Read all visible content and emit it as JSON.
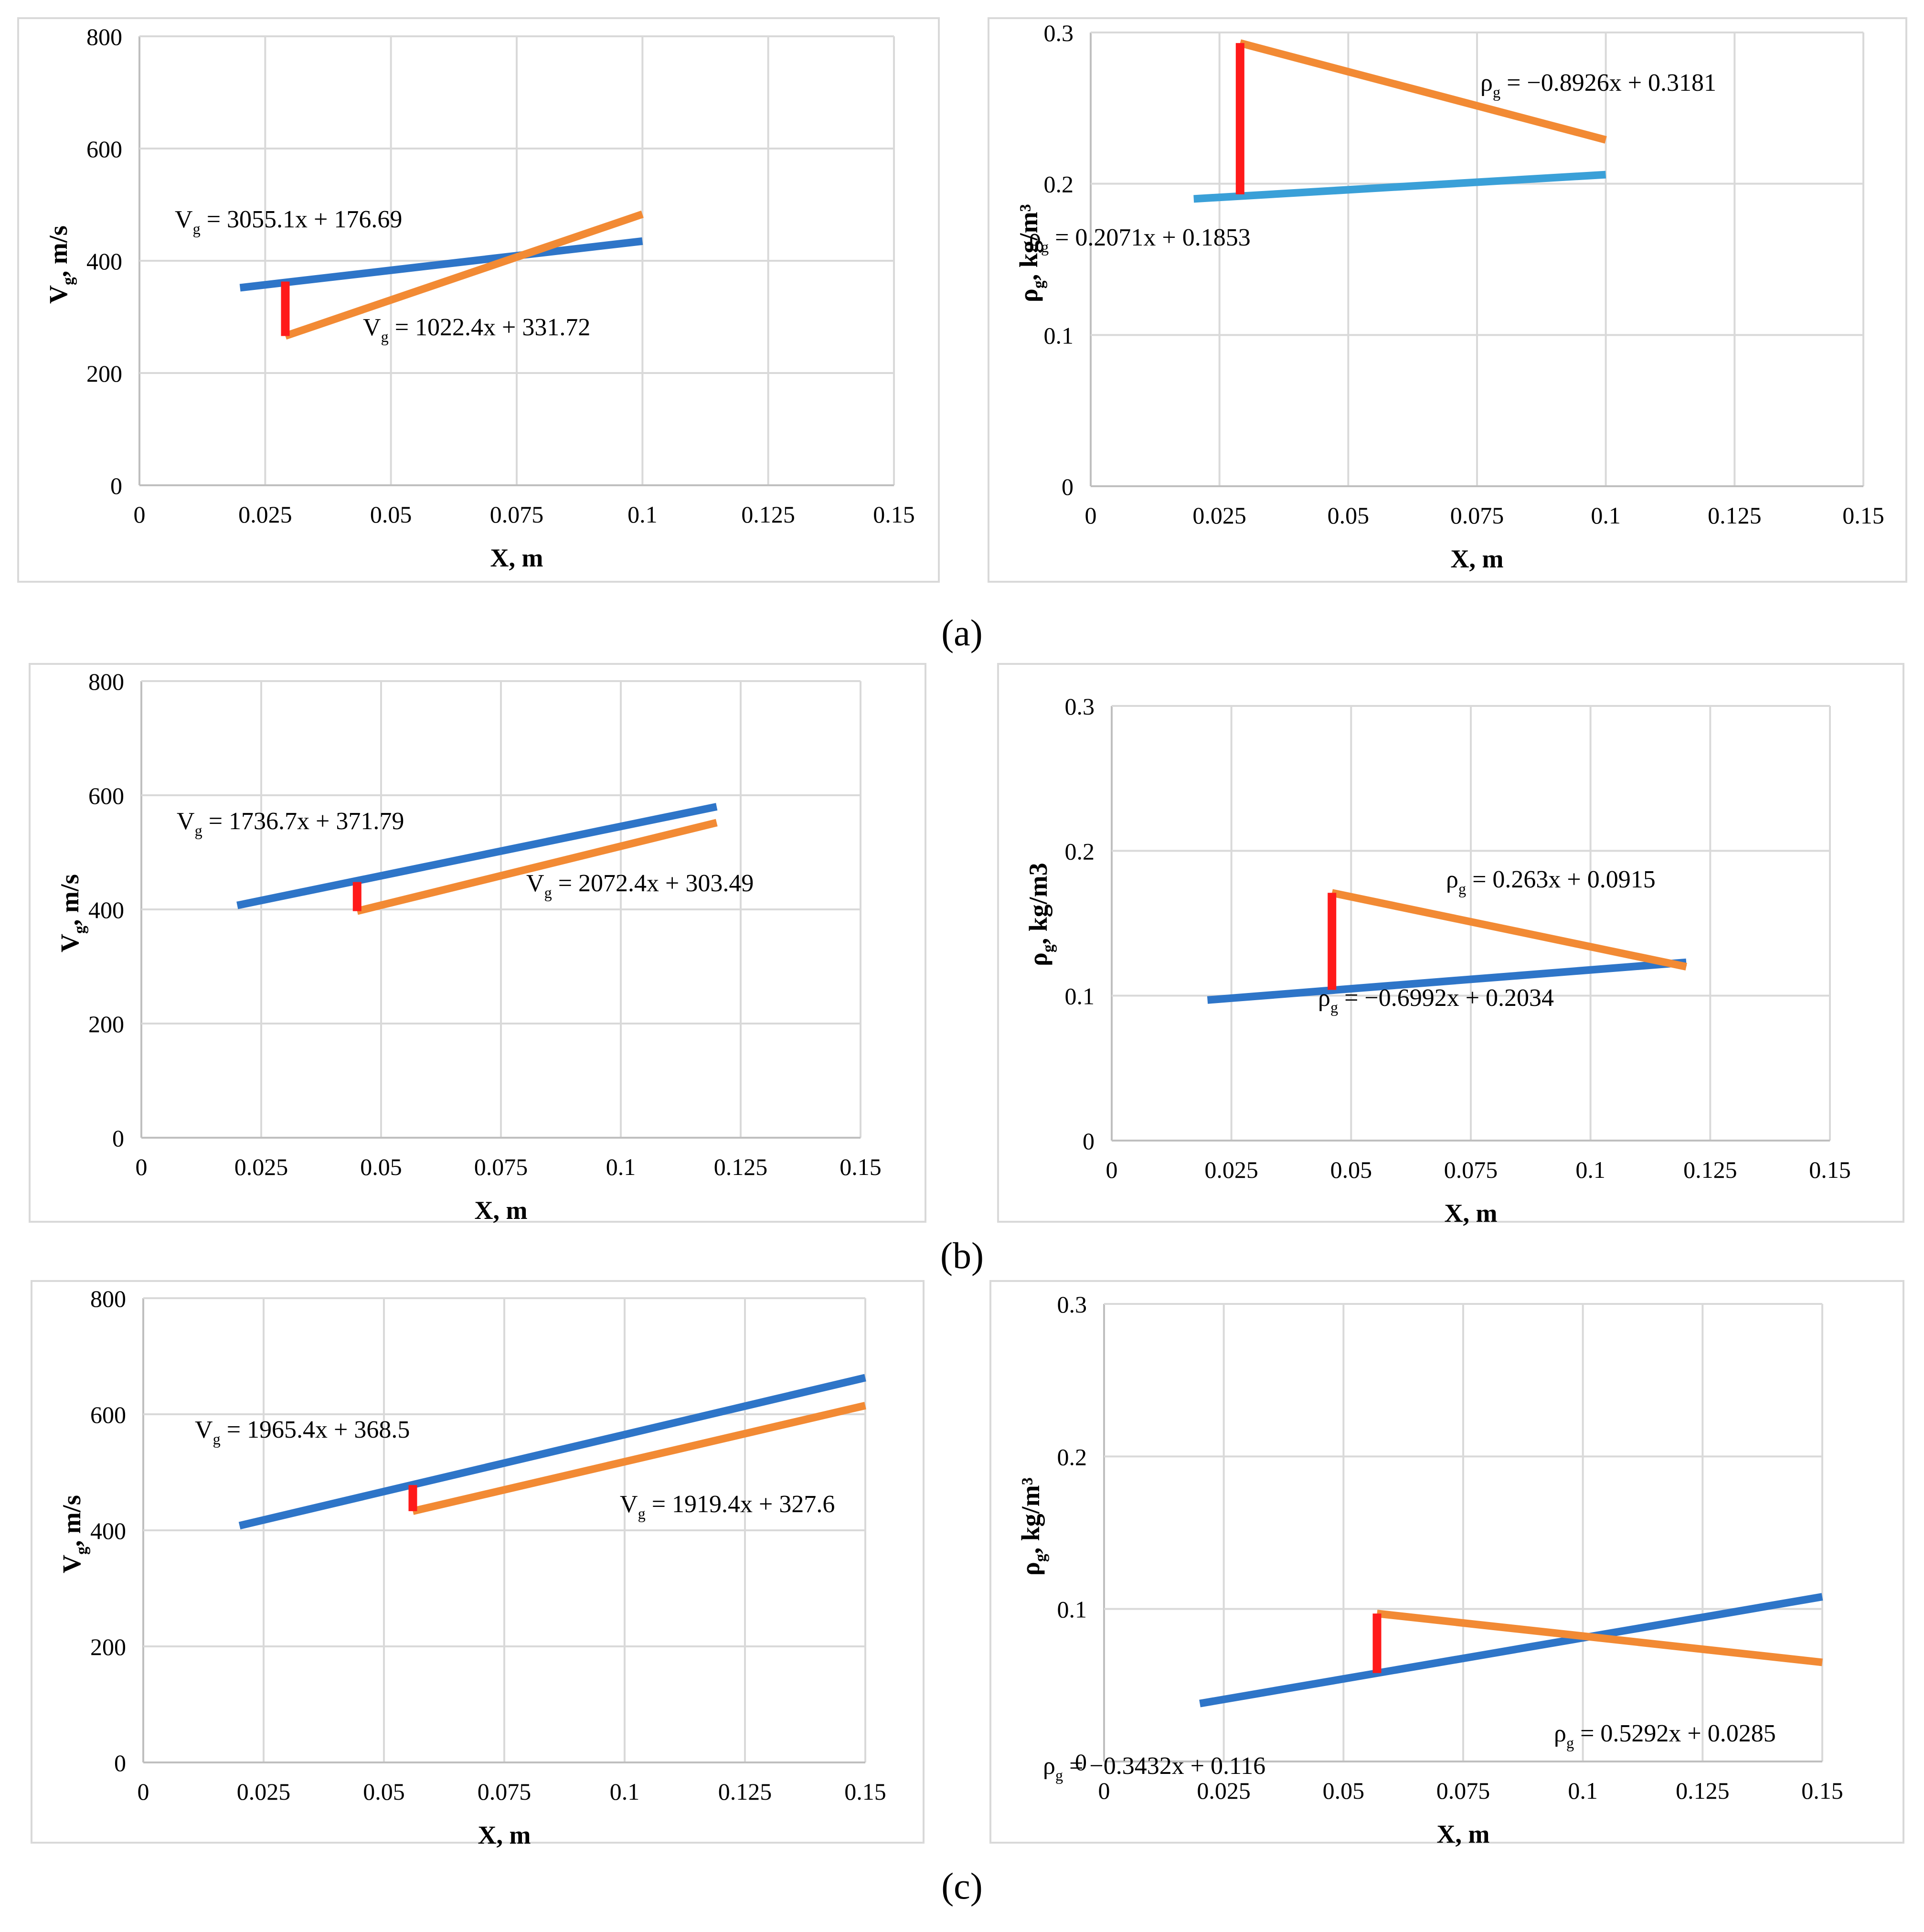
{
  "captions": [
    "(a)",
    "(b)",
    "(c)"
  ],
  "colors": {
    "blue": "#2e75c8",
    "lightblue": "#3aa0d8",
    "orange": "#f28a34",
    "red": "#ff1a1a",
    "grid": "#d9d9d9"
  },
  "chart_data": [
    {
      "id": "a-velocity",
      "type": "line",
      "xlabel": "X, m",
      "ylabel_main": "V",
      "ylabel_sub": "g",
      "ylabel_rest": ", m/s",
      "xlim": [
        0,
        0.15
      ],
      "ylim": [
        0,
        800
      ],
      "xticks": [
        "0",
        "0.025",
        "0.05",
        "0.075",
        "0.1",
        "0.125",
        "0.15"
      ],
      "yticks": [
        "0",
        "200",
        "400",
        "600",
        "800"
      ],
      "series": [
        {
          "name": "blue",
          "color": "#2e75c8",
          "x": [
            0.02,
            0.1
          ],
          "y": [
            352,
            435
          ]
        },
        {
          "name": "orange",
          "color": "#f28a34",
          "x": [
            0.029,
            0.1
          ],
          "y": [
            266,
            483
          ]
        },
        {
          "name": "red",
          "color": "#ff1a1a",
          "x": [
            0.029,
            0.029
          ],
          "y": [
            363,
            266
          ]
        }
      ],
      "annotations": [
        {
          "main": "V",
          "sub": "g",
          "rest": " = 3055.1x + 176.69"
        },
        {
          "main": "V",
          "sub": "g",
          "rest": " = 1022.4x + 331.72"
        }
      ]
    },
    {
      "id": "a-density",
      "type": "line",
      "xlabel": "X, m",
      "ylabel_main": "ρ",
      "ylabel_sub": "g",
      "ylabel_rest": ", kg/m³",
      "xlim": [
        0,
        0.15
      ],
      "ylim": [
        0,
        0.3
      ],
      "xticks": [
        "0",
        "0.025",
        "0.05",
        "0.075",
        "0.1",
        "0.125",
        "0.15"
      ],
      "yticks": [
        "0",
        "0.1",
        "0.2",
        "0.3"
      ],
      "series": [
        {
          "name": "blue",
          "color": "#3aa0d8",
          "x": [
            0.02,
            0.1
          ],
          "y": [
            0.19,
            0.206
          ]
        },
        {
          "name": "orange",
          "color": "#f28a34",
          "x": [
            0.029,
            0.1
          ],
          "y": [
            0.293,
            0.229
          ]
        },
        {
          "name": "red",
          "color": "#ff1a1a",
          "x": [
            0.029,
            0.029
          ],
          "y": [
            0.293,
            0.193
          ]
        }
      ],
      "annotations": [
        {
          "main": "ρ",
          "sub": "g",
          "rest": " = −0.8926x + 0.3181"
        },
        {
          "main": "ρ",
          "sub": "g",
          "rest": " = 0.2071x + 0.1853"
        }
      ]
    },
    {
      "id": "b-velocity",
      "type": "line",
      "xlabel": "X, m",
      "ylabel_main": "V",
      "ylabel_sub": "g",
      "ylabel_rest": ", m/s",
      "xlim": [
        0,
        0.15
      ],
      "ylim": [
        0,
        800
      ],
      "xticks": [
        "0",
        "0.025",
        "0.05",
        "0.075",
        "0.1",
        "0.125",
        "0.15"
      ],
      "yticks": [
        "0",
        "200",
        "400",
        "600",
        "800"
      ],
      "series": [
        {
          "name": "blue",
          "color": "#2e75c8",
          "x": [
            0.02,
            0.12
          ],
          "y": [
            407,
            580
          ]
        },
        {
          "name": "orange",
          "color": "#f28a34",
          "x": [
            0.045,
            0.12
          ],
          "y": [
            397,
            552
          ]
        },
        {
          "name": "red",
          "color": "#ff1a1a",
          "x": [
            0.045,
            0.045
          ],
          "y": [
            448,
            397
          ]
        }
      ],
      "annotations": [
        {
          "main": "V",
          "sub": "g",
          "rest": " = 1736.7x + 371.79"
        },
        {
          "main": "V",
          "sub": "g",
          "rest": " = 2072.4x + 303.49"
        }
      ]
    },
    {
      "id": "b-density",
      "type": "line",
      "xlabel": "X, m",
      "ylabel_main": "ρ",
      "ylabel_sub": "g",
      "ylabel_rest": ", kg/m3",
      "xlim": [
        0,
        0.15
      ],
      "ylim": [
        0,
        0.3
      ],
      "xticks": [
        "0",
        "0.025",
        "0.05",
        "0.075",
        "0.1",
        "0.125",
        "0.15"
      ],
      "yticks": [
        "0",
        "0.1",
        "0.2",
        "0.3"
      ],
      "series": [
        {
          "name": "blue",
          "color": "#2e75c8",
          "x": [
            0.02,
            0.12
          ],
          "y": [
            0.097,
            0.123
          ]
        },
        {
          "name": "orange",
          "color": "#f28a34",
          "x": [
            0.046,
            0.12
          ],
          "y": [
            0.171,
            0.12
          ]
        },
        {
          "name": "red",
          "color": "#ff1a1a",
          "x": [
            0.046,
            0.046
          ],
          "y": [
            0.171,
            0.104
          ]
        }
      ],
      "annotations": [
        {
          "main": "ρ",
          "sub": "g",
          "rest": " = 0.263x + 0.0915"
        },
        {
          "main": "ρ",
          "sub": "g",
          "rest": " = −0.6992x + 0.2034"
        }
      ]
    },
    {
      "id": "c-velocity",
      "type": "line",
      "xlabel": "X, m",
      "ylabel_main": "V",
      "ylabel_sub": "g",
      "ylabel_rest": ", m/s",
      "xlim": [
        0,
        0.15
      ],
      "ylim": [
        0,
        800
      ],
      "xticks": [
        "0",
        "0.025",
        "0.05",
        "0.075",
        "0.1",
        "0.125",
        "0.15"
      ],
      "yticks": [
        "0",
        "200",
        "400",
        "600",
        "800"
      ],
      "series": [
        {
          "name": "blue",
          "color": "#2e75c8",
          "x": [
            0.02,
            0.15
          ],
          "y": [
            408,
            663
          ]
        },
        {
          "name": "orange",
          "color": "#f28a34",
          "x": [
            0.056,
            0.15
          ],
          "y": [
            433,
            615
          ]
        },
        {
          "name": "red",
          "color": "#ff1a1a",
          "x": [
            0.056,
            0.056
          ],
          "y": [
            478,
            433
          ]
        }
      ],
      "annotations": [
        {
          "main": "V",
          "sub": "g",
          "rest": " = 1965.4x + 368.5"
        },
        {
          "main": "V",
          "sub": "g",
          "rest": " = 1919.4x + 327.6"
        }
      ]
    },
    {
      "id": "c-density",
      "type": "line",
      "xlabel": "X, m",
      "ylabel_main": "ρ",
      "ylabel_sub": "g",
      "ylabel_rest": ", kg/m³",
      "xlim": [
        0,
        0.15
      ],
      "ylim": [
        0,
        0.3
      ],
      "xticks": [
        "0",
        "0.025",
        "0.05",
        "0.075",
        "0.1",
        "0.125",
        "0.15"
      ],
      "yticks": [
        "0",
        "0.1",
        "0.2",
        "0.3"
      ],
      "series": [
        {
          "name": "blue",
          "color": "#2e75c8",
          "x": [
            0.02,
            0.15
          ],
          "y": [
            0.038,
            0.108
          ]
        },
        {
          "name": "orange",
          "color": "#f28a34",
          "x": [
            0.057,
            0.15
          ],
          "y": [
            0.097,
            0.065
          ]
        },
        {
          "name": "red",
          "color": "#ff1a1a",
          "x": [
            0.057,
            0.057
          ],
          "y": [
            0.097,
            0.058
          ]
        }
      ],
      "annotations": [
        {
          "main": "ρ",
          "sub": "g",
          "rest": " = −0.3432x + 0.116"
        },
        {
          "main": "ρ",
          "sub": "g",
          "rest": " = 0.5292x + 0.0285"
        }
      ]
    }
  ]
}
